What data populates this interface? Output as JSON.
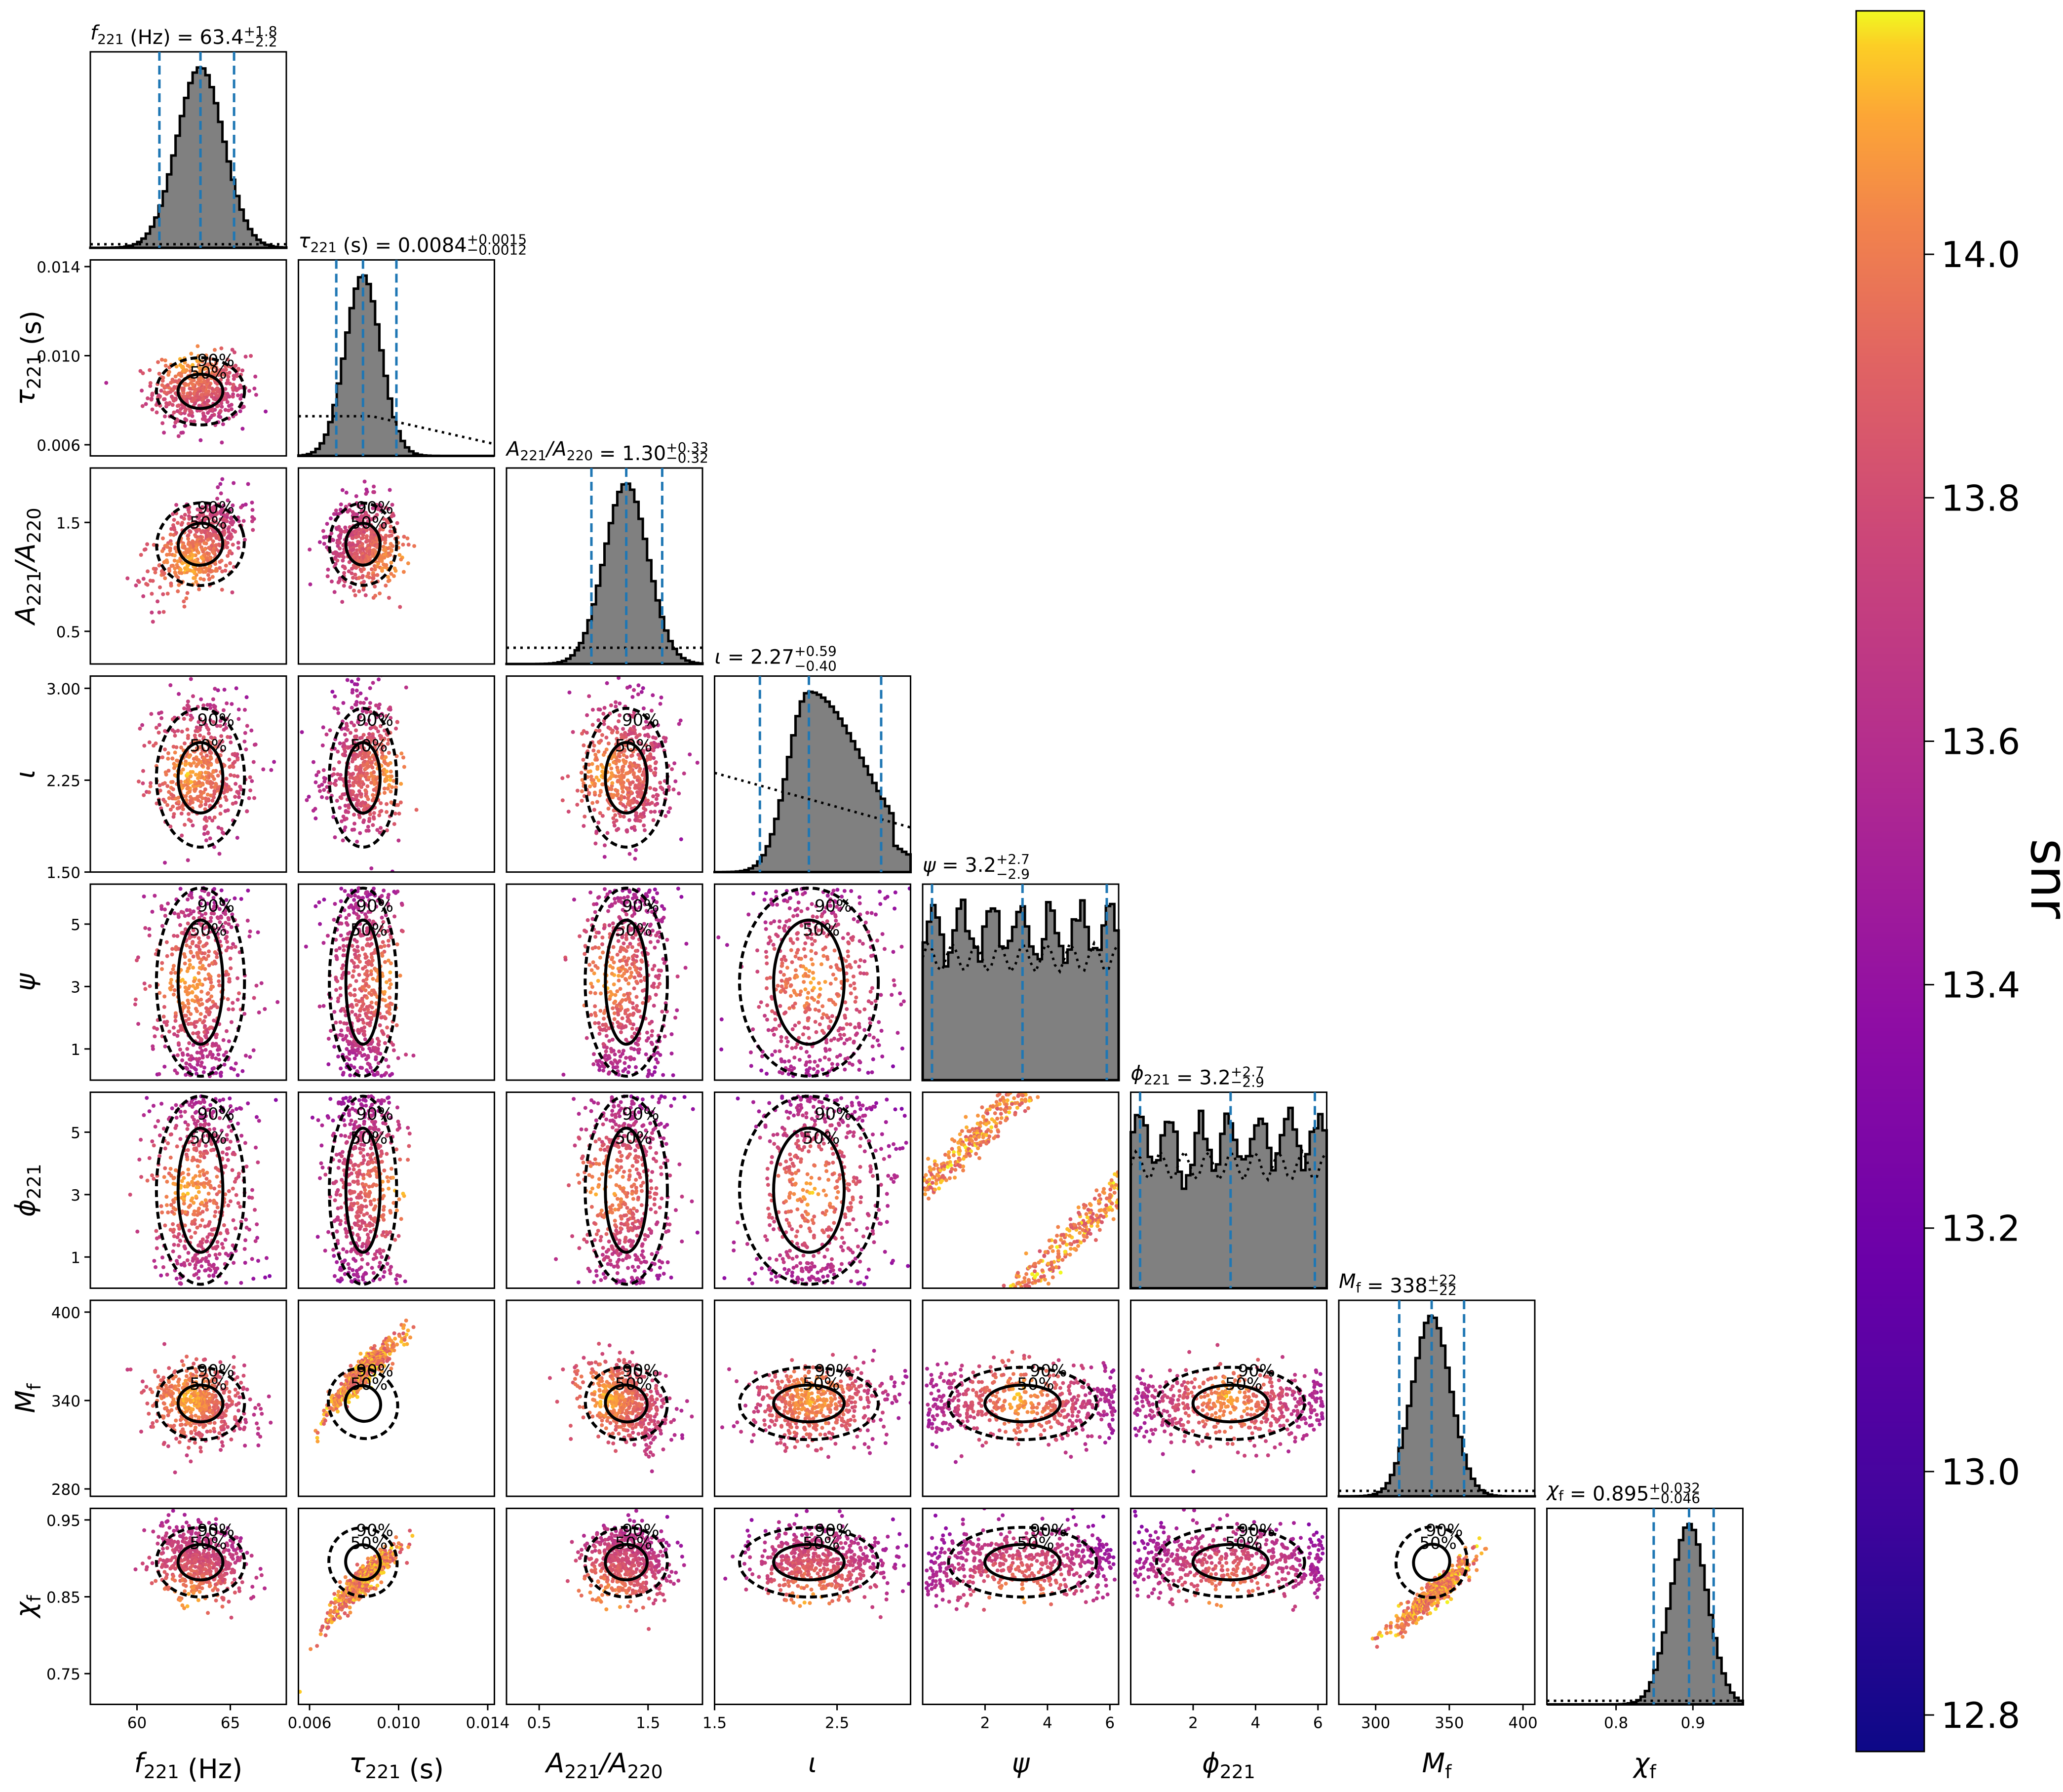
{
  "figure": {
    "kind": "corner plot",
    "colorbar": {
      "label": "snr",
      "ticks": [
        "12.8",
        "13.0",
        "13.2",
        "13.4",
        "13.6",
        "13.8",
        "14.0"
      ],
      "range": [
        12.77,
        14.2
      ],
      "colormap": "plasma"
    },
    "marginal_titles": [
      {
        "param": "f221",
        "name": "f",
        "sub": "221",
        "unit": " (Hz)",
        "median": "63.4",
        "plus": "+1.8",
        "minus": "−2.2"
      },
      {
        "param": "tau221",
        "name": "τ",
        "sub": "221",
        "unit": " (s)",
        "median": "0.0084",
        "plus": "+0.0015",
        "minus": "−0.0012"
      },
      {
        "param": "ratio",
        "name": "A",
        "sub": "221",
        "name2": "/A",
        "sub2": "220",
        "unit": "",
        "median": "1.30",
        "plus": "+0.33",
        "minus": "−0.32"
      },
      {
        "param": "iota",
        "name": "ι",
        "sub": "",
        "unit": "",
        "median": "2.27",
        "plus": "+0.59",
        "minus": "−0.40"
      },
      {
        "param": "psi",
        "name": "ψ",
        "sub": "",
        "unit": "",
        "median": "3.2",
        "plus": "+2.7",
        "minus": "−2.9"
      },
      {
        "param": "phi221",
        "name": "ϕ",
        "sub": "221",
        "unit": "",
        "median": "3.2",
        "plus": "+2.7",
        "minus": "−2.9"
      },
      {
        "param": "Mf",
        "name": "M",
        "sub": "f",
        "unit": "",
        "median": "338",
        "plus": "+22",
        "minus": "−22"
      },
      {
        "param": "chif",
        "name": "χ",
        "sub": "f",
        "unit": "",
        "median": "0.895",
        "plus": "+0.032",
        "minus": "−0.046"
      }
    ],
    "y_axis_labels": [
      {
        "param": "tau221",
        "name": "τ",
        "sub": "221",
        "unit": " (s)"
      },
      {
        "param": "ratio",
        "name": "A",
        "sub": "221",
        "name2": "/A",
        "sub2": "220",
        "unit": ""
      },
      {
        "param": "iota",
        "name": "ι",
        "sub": "",
        "unit": ""
      },
      {
        "param": "psi",
        "name": "ψ",
        "sub": "",
        "unit": ""
      },
      {
        "param": "phi221",
        "name": "ϕ",
        "sub": "221",
        "unit": ""
      },
      {
        "param": "Mf",
        "name": "M",
        "sub": "f",
        "unit": ""
      },
      {
        "param": "chif",
        "name": "χ",
        "sub": "f",
        "unit": ""
      }
    ],
    "x_axis_labels": [
      {
        "param": "f221",
        "name": "f",
        "sub": "221",
        "unit": " (Hz)"
      },
      {
        "param": "tau221",
        "name": "τ",
        "sub": "221",
        "unit": " (s)"
      },
      {
        "param": "ratio",
        "name": "A",
        "sub": "221",
        "name2": "/A",
        "sub2": "220",
        "unit": ""
      },
      {
        "param": "iota",
        "name": "ι",
        "sub": "",
        "unit": ""
      },
      {
        "param": "psi",
        "name": "ψ",
        "sub": "",
        "unit": ""
      },
      {
        "param": "phi221",
        "name": "ϕ",
        "sub": "221",
        "unit": ""
      },
      {
        "param": "Mf",
        "name": "M",
        "sub": "f",
        "unit": ""
      },
      {
        "param": "chif",
        "name": "χ",
        "sub": "f",
        "unit": ""
      }
    ],
    "contour_labels": [
      "50%",
      "90%"
    ],
    "colors": {
      "hist_fill": "#808080",
      "quantile_line": "#1f77b4",
      "contour": "#000000"
    }
  },
  "chart_data": {
    "type": "scatter",
    "subtype": "corner",
    "params": [
      "f221",
      "tau221",
      "ratio",
      "iota",
      "psi",
      "phi221",
      "Mf",
      "chif"
    ],
    "axes": {
      "f221": {
        "range": [
          57.5,
          68.0
        ],
        "ticks": [
          60,
          65
        ],
        "tick_labels": [
          "60",
          "65"
        ],
        "median": 63.4,
        "lo": 61.2,
        "hi": 65.2,
        "sd": 1.25,
        "prior": 0.02
      },
      "tau221": {
        "range": [
          0.0055,
          0.0143
        ],
        "ticks": [
          0.006,
          0.01,
          0.014
        ],
        "tick_labels": [
          "0.006",
          "0.010",
          "0.014"
        ],
        "median": 0.0084,
        "lo": 0.0072,
        "hi": 0.0099,
        "sd": 0.0008,
        "prior": 0.22
      },
      "ratio": {
        "range": [
          0.2,
          2.0
        ],
        "ticks": [
          0.5,
          1.5
        ],
        "tick_labels": [
          "0.5",
          "1.5"
        ],
        "median": 1.3,
        "lo": 0.98,
        "hi": 1.63,
        "sd": 0.2,
        "prior": 0.09
      },
      "iota": {
        "range": [
          1.5,
          3.1
        ],
        "ticks": [
          1.5,
          2.25,
          3.0
        ],
        "tick_labels": [
          "1.50",
          "2.25",
          "3.00"
        ],
        "x_ticks": [
          1.5,
          2.5
        ],
        "x_tick_labels": [
          "1.5",
          "2.5"
        ],
        "median": 2.27,
        "lo": 1.87,
        "hi": 2.86,
        "sd": 0.3,
        "prior": 0.55
      },
      "psi": {
        "range": [
          0.0,
          6.28
        ],
        "ticks": [
          1,
          3,
          5
        ],
        "tick_labels": [
          "1",
          "3",
          "5"
        ],
        "x_ticks": [
          2,
          4,
          6
        ],
        "x_tick_labels": [
          "2",
          "4",
          "6"
        ],
        "median": 3.2,
        "lo": 0.3,
        "hi": 5.9,
        "sd": 0,
        "prior": 0.85
      },
      "phi221": {
        "range": [
          0.0,
          6.28
        ],
        "ticks": [
          1,
          3,
          5
        ],
        "tick_labels": [
          "1",
          "3",
          "5"
        ],
        "x_ticks": [
          2,
          4,
          6
        ],
        "x_tick_labels": [
          "2",
          "4",
          "6"
        ],
        "median": 3.2,
        "lo": 0.3,
        "hi": 5.9,
        "sd": 0,
        "prior": 0.85
      },
      "Mf": {
        "range": [
          275,
          408
        ],
        "ticks": [
          280,
          340,
          400
        ],
        "tick_labels": [
          "280",
          "340",
          "400"
        ],
        "x_ticks": [
          300,
          350,
          400
        ],
        "x_tick_labels": [
          "300",
          "350",
          "400"
        ],
        "median": 338,
        "lo": 316,
        "hi": 360,
        "sd": 13,
        "prior": 0.03
      },
      "chif": {
        "range": [
          0.71,
          0.965
        ],
        "ticks": [
          0.75,
          0.85,
          0.95
        ],
        "tick_labels": [
          "0.75",
          "0.85",
          "0.95"
        ],
        "x_ticks": [
          0.8,
          0.9
        ],
        "x_tick_labels": [
          "0.8",
          "0.9"
        ],
        "median": 0.895,
        "lo": 0.849,
        "hi": 0.927,
        "sd": 0.024,
        "prior": 0.02
      }
    },
    "correlations": {
      "f221-ratio": 0.6,
      "tau221-Mf": 0.95,
      "tau221-chif": 0.95,
      "Mf-chif": 0.85,
      "ratio-Mf": -0.35,
      "f221-Mf": -0.1
    }
  }
}
